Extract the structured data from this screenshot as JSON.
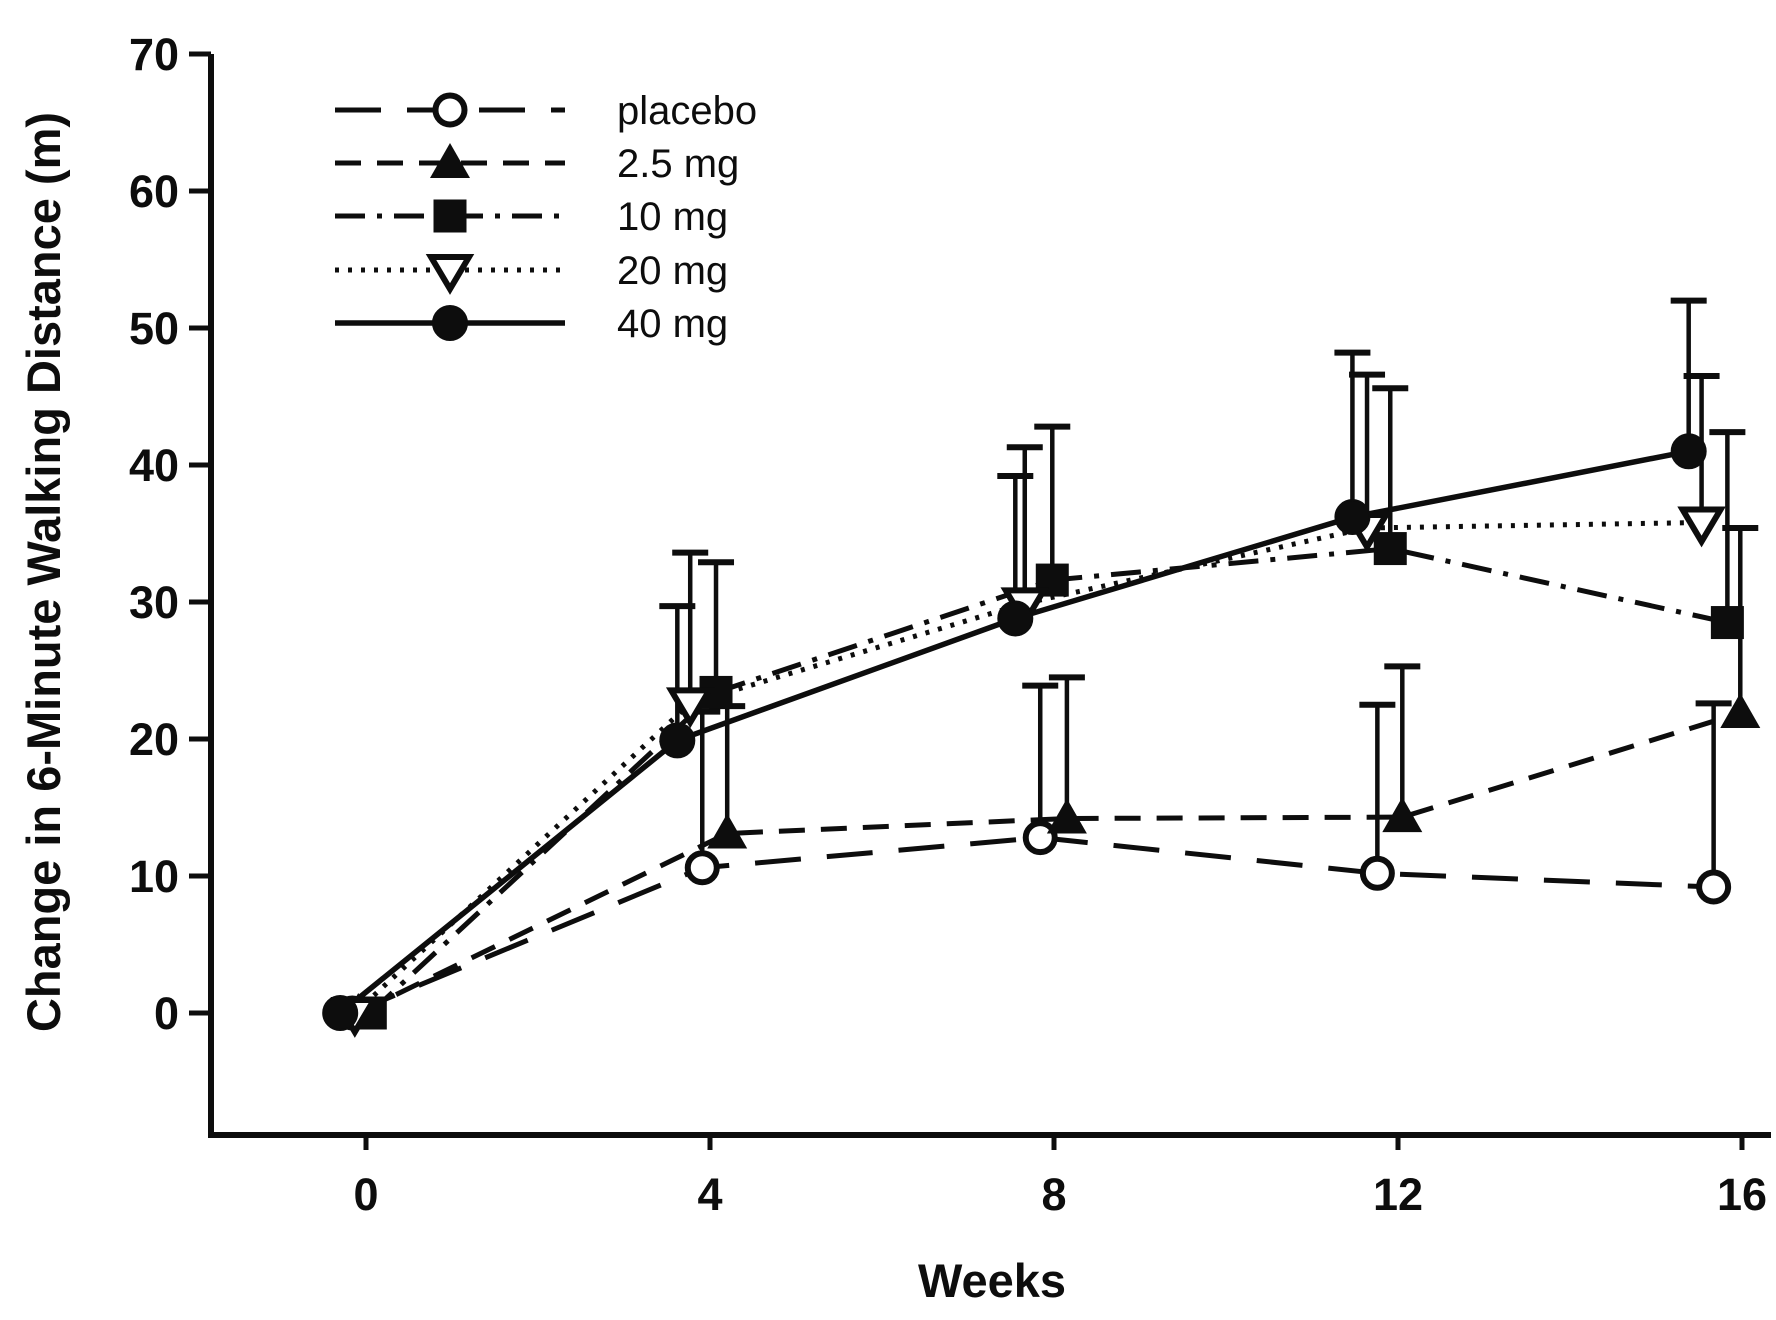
{
  "chart_data": {
    "type": "line",
    "title": "",
    "xlabel": "Weeks",
    "ylabel": "Change in 6-Minute Walking Distance (m)",
    "x_tick_labels": [
      "0",
      "4",
      "8",
      "12",
      "16"
    ],
    "x_tick_values": [
      0,
      4,
      8,
      12,
      16
    ],
    "y_tick_labels": [
      "0",
      "10",
      "20",
      "30",
      "40",
      "50",
      "60",
      "70"
    ],
    "y_tick_values": [
      0,
      10,
      20,
      30,
      40,
      50,
      60,
      70
    ],
    "xlim": [
      -1.8,
      16.35
    ],
    "ylim": [
      -9,
      70.3
    ],
    "grid": false,
    "legend_position": "top-left-inside",
    "error_bars": "upper-only",
    "ink_color": "#0d0d0d",
    "background_color": "#ffffff",
    "series": [
      {
        "name": "placebo",
        "marker": "open-circle",
        "line_style": "long-dash",
        "x_weeks": [
          -0.16,
          3.91,
          7.84,
          11.76,
          15.67
        ],
        "y_m": [
          0,
          10.6,
          12.8,
          10.2,
          9.2
        ],
        "error_bar_top_m": [
          null,
          22.0,
          23.9,
          22.5,
          22.6
        ]
      },
      {
        "name": "2.5 mg",
        "marker": "filled-triangle-up",
        "line_style": "dash",
        "x_weeks": [
          -0.09,
          4.2,
          8.15,
          12.05,
          15.98
        ],
        "y_m": [
          0,
          13.1,
          14.2,
          14.3,
          21.9
        ],
        "error_bar_top_m": [
          null,
          22.4,
          24.5,
          25.3,
          35.4
        ]
      },
      {
        "name": "10 mg",
        "marker": "filled-square",
        "line_style": "dash-dot",
        "x_weeks": [
          0.05,
          4.07,
          7.98,
          11.91,
          15.83
        ],
        "y_m": [
          0,
          23.4,
          31.6,
          33.9,
          28.5
        ],
        "error_bar_top_m": [
          null,
          32.9,
          42.8,
          45.6,
          42.4
        ]
      },
      {
        "name": "20 mg",
        "marker": "open-triangle-down",
        "line_style": "dotted",
        "x_weeks": [
          -0.13,
          3.77,
          7.66,
          11.64,
          15.53
        ],
        "y_m": [
          0,
          22.6,
          29.9,
          35.4,
          35.8
        ],
        "error_bar_top_m": [
          null,
          33.6,
          41.3,
          46.6,
          46.5
        ]
      },
      {
        "name": "40 mg",
        "marker": "filled-circle",
        "line_style": "solid",
        "x_weeks": [
          -0.3,
          3.62,
          7.55,
          11.47,
          15.38
        ],
        "y_m": [
          0,
          19.9,
          28.8,
          36.2,
          41.0
        ],
        "error_bar_top_m": [
          null,
          29.7,
          39.2,
          48.2,
          52.0
        ]
      }
    ]
  }
}
